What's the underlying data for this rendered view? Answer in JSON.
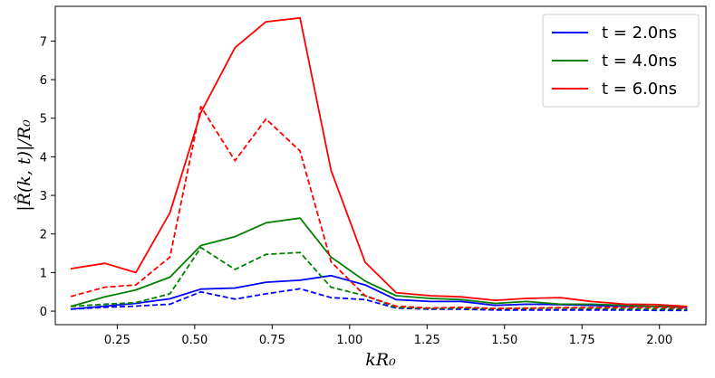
{
  "chart_data": {
    "type": "line",
    "xlabel": "kR₀",
    "ylabel": "|R̂(k, t)|/R₀",
    "xlim": [
      0.05,
      2.15
    ],
    "ylim": [
      -0.35,
      7.9
    ],
    "x_ticks": [
      0.25,
      0.5,
      0.75,
      1.0,
      1.25,
      1.5,
      1.75,
      2.0
    ],
    "x_tick_labels": [
      "0.25",
      "0.50",
      "0.75",
      "1.00",
      "1.25",
      "1.50",
      "1.75",
      "2.00"
    ],
    "y_ticks": [
      0,
      1,
      2,
      3,
      4,
      5,
      6,
      7
    ],
    "y_tick_labels": [
      "0",
      "1",
      "2",
      "3",
      "4",
      "5",
      "6",
      "7"
    ],
    "grid": false,
    "legend_position": "top-right",
    "x": [
      0.1,
      0.21,
      0.31,
      0.42,
      0.52,
      0.63,
      0.73,
      0.84,
      0.94,
      1.05,
      1.15,
      1.26,
      1.36,
      1.47,
      1.57,
      1.68,
      1.78,
      1.89,
      1.99,
      2.09
    ],
    "series": [
      {
        "name": "t = 2.0ns",
        "style": "solid",
        "color": "#0000ff",
        "values": [
          0.05,
          0.13,
          0.2,
          0.32,
          0.57,
          0.6,
          0.75,
          0.8,
          0.92,
          0.68,
          0.3,
          0.25,
          0.25,
          0.15,
          0.18,
          0.17,
          0.15,
          0.12,
          0.12,
          0.1
        ]
      },
      {
        "name": "t = 4.0ns",
        "style": "solid",
        "color": "#008000",
        "values": [
          0.12,
          0.37,
          0.55,
          0.88,
          1.7,
          1.93,
          2.29,
          2.41,
          1.4,
          0.78,
          0.4,
          0.33,
          0.3,
          0.2,
          0.25,
          0.18,
          0.18,
          0.15,
          0.12,
          0.12
        ]
      },
      {
        "name": "t = 6.0ns",
        "style": "solid",
        "color": "#ff0000",
        "values": [
          1.1,
          1.24,
          1.0,
          2.55,
          5.15,
          6.83,
          7.5,
          7.6,
          3.65,
          1.27,
          0.48,
          0.4,
          0.37,
          0.28,
          0.33,
          0.35,
          0.25,
          0.18,
          0.17,
          0.12
        ]
      },
      {
        "style": "dashed",
        "color": "#0000ff",
        "values": [
          0.05,
          0.1,
          0.13,
          0.18,
          0.5,
          0.31,
          0.45,
          0.58,
          0.35,
          0.3,
          0.08,
          0.05,
          0.05,
          0.03,
          0.03,
          0.03,
          0.03,
          0.03,
          0.02,
          0.02
        ]
      },
      {
        "style": "dashed",
        "color": "#008000",
        "values": [
          0.12,
          0.18,
          0.22,
          0.45,
          1.65,
          1.08,
          1.47,
          1.52,
          0.62,
          0.4,
          0.1,
          0.07,
          0.08,
          0.06,
          0.07,
          0.08,
          0.07,
          0.06,
          0.06,
          0.05
        ]
      },
      {
        "style": "dashed",
        "color": "#ff0000",
        "values": [
          0.38,
          0.62,
          0.68,
          1.4,
          5.3,
          3.9,
          4.98,
          4.15,
          1.28,
          0.4,
          0.13,
          0.08,
          0.1,
          0.07,
          0.08,
          0.09,
          0.09,
          0.1,
          0.1,
          0.08
        ]
      }
    ]
  }
}
